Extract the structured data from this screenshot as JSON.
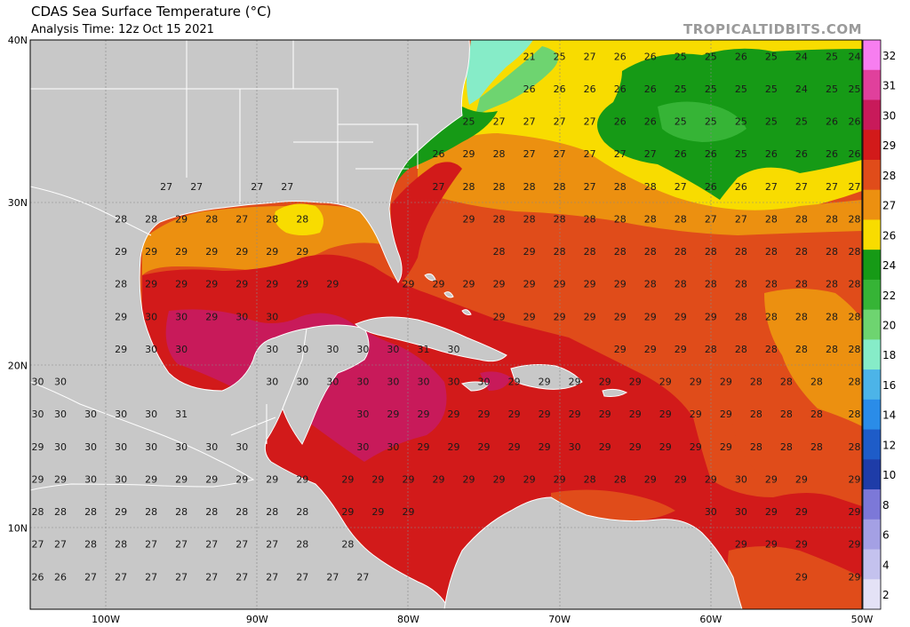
{
  "header": {
    "title": "CDAS Sea Surface Temperature (°C)",
    "subtitle": "Analysis Time: 12z Oct 15 2021",
    "credit": "TROPICALTIDBITS.COM"
  },
  "map": {
    "lon_range": [
      -105,
      -50
    ],
    "lat_range": [
      5,
      40
    ],
    "lat_labels": [
      "40N",
      "30N",
      "20N",
      "10N"
    ],
    "lon_labels": [
      "100W",
      "90W",
      "80W",
      "70W",
      "60W",
      "50W"
    ],
    "land_color": "#c8c8c8",
    "border_color": "#ffffff"
  },
  "colorbar": {
    "labels": [
      "32",
      "31",
      "30",
      "29",
      "28",
      "27",
      "26",
      "24",
      "22",
      "20",
      "18",
      "16",
      "14",
      "12",
      "10",
      "8",
      "6",
      "4",
      "2"
    ],
    "bands": [
      {
        "label": "32",
        "color": "#f77ef0"
      },
      {
        "label": "31",
        "color": "#e0409c"
      },
      {
        "label": "30",
        "color": "#c81a5a"
      },
      {
        "label": "29",
        "color": "#d21a1a"
      },
      {
        "label": "28",
        "color": "#e04c1a"
      },
      {
        "label": "27",
        "color": "#ec9010"
      },
      {
        "label": "26",
        "color": "#f8dc00"
      },
      {
        "label": "24",
        "color": "#169a16"
      },
      {
        "label": "22",
        "color": "#36b436"
      },
      {
        "label": "20",
        "color": "#6ed470"
      },
      {
        "label": "18",
        "color": "#86ecc8"
      },
      {
        "label": "16",
        "color": "#4cb4e8"
      },
      {
        "label": "14",
        "color": "#2a8ce8"
      },
      {
        "label": "12",
        "color": "#1e5cc8"
      },
      {
        "label": "10",
        "color": "#1e3ca8"
      },
      {
        "label": "8",
        "color": "#7c78d8"
      },
      {
        "label": "6",
        "color": "#a4a0e4"
      },
      {
        "label": "4",
        "color": "#c4c2ee"
      },
      {
        "label": "2",
        "color": "#e4e2f6"
      }
    ]
  },
  "sst_rows": [
    {
      "lat": 39.0,
      "cells": [
        [
          -72,
          "21"
        ],
        [
          -70,
          "25"
        ],
        [
          -68,
          "27"
        ],
        [
          -66,
          "26"
        ],
        [
          -64,
          "26"
        ],
        [
          -62,
          "25"
        ],
        [
          -60,
          "25"
        ],
        [
          -58,
          "26"
        ],
        [
          -56,
          "25"
        ],
        [
          -54,
          "24"
        ],
        [
          -52,
          "25"
        ],
        [
          -50.5,
          "24"
        ]
      ]
    },
    {
      "lat": 37.0,
      "cells": [
        [
          -72,
          "26"
        ],
        [
          -70,
          "26"
        ],
        [
          -68,
          "26"
        ],
        [
          -66,
          "26"
        ],
        [
          -64,
          "26"
        ],
        [
          -62,
          "25"
        ],
        [
          -60,
          "25"
        ],
        [
          -58,
          "25"
        ],
        [
          -56,
          "25"
        ],
        [
          -54,
          "24"
        ],
        [
          -52,
          "25"
        ],
        [
          -50.5,
          "25"
        ]
      ]
    },
    {
      "lat": 35.0,
      "cells": [
        [
          -76,
          "25"
        ],
        [
          -74,
          "27"
        ],
        [
          -72,
          "27"
        ],
        [
          -70,
          "27"
        ],
        [
          -68,
          "27"
        ],
        [
          -66,
          "26"
        ],
        [
          -64,
          "26"
        ],
        [
          -62,
          "25"
        ],
        [
          -60,
          "25"
        ],
        [
          -58,
          "25"
        ],
        [
          -56,
          "25"
        ],
        [
          -54,
          "25"
        ],
        [
          -52,
          "26"
        ],
        [
          -50.5,
          "26"
        ]
      ]
    },
    {
      "lat": 33.0,
      "cells": [
        [
          -78,
          "26"
        ],
        [
          -76,
          "29"
        ],
        [
          -74,
          "28"
        ],
        [
          -72,
          "27"
        ],
        [
          -70,
          "27"
        ],
        [
          -68,
          "27"
        ],
        [
          -66,
          "27"
        ],
        [
          -64,
          "27"
        ],
        [
          -62,
          "26"
        ],
        [
          -60,
          "26"
        ],
        [
          -58,
          "25"
        ],
        [
          -56,
          "26"
        ],
        [
          -54,
          "26"
        ],
        [
          -52,
          "26"
        ],
        [
          -50.5,
          "26"
        ]
      ]
    },
    {
      "lat": 31.0,
      "cells": [
        [
          -96,
          "27"
        ],
        [
          -94,
          "27"
        ],
        [
          -90,
          "27"
        ],
        [
          -88,
          "27"
        ],
        [
          -78,
          "27"
        ],
        [
          -76,
          "28"
        ],
        [
          -74,
          "28"
        ],
        [
          -72,
          "28"
        ],
        [
          -70,
          "28"
        ],
        [
          -68,
          "27"
        ],
        [
          -66,
          "28"
        ],
        [
          -64,
          "28"
        ],
        [
          -62,
          "27"
        ],
        [
          -60,
          "26"
        ],
        [
          -58,
          "26"
        ],
        [
          -56,
          "27"
        ],
        [
          -54,
          "27"
        ],
        [
          -52,
          "27"
        ],
        [
          -50.5,
          "27"
        ]
      ]
    },
    {
      "lat": 29.0,
      "cells": [
        [
          -99,
          "28"
        ],
        [
          -97,
          "28"
        ],
        [
          -95,
          "29"
        ],
        [
          -93,
          "28"
        ],
        [
          -91,
          "27"
        ],
        [
          -89,
          "28"
        ],
        [
          -87,
          "28"
        ],
        [
          -76,
          "29"
        ],
        [
          -74,
          "28"
        ],
        [
          -72,
          "28"
        ],
        [
          -70,
          "28"
        ],
        [
          -68,
          "28"
        ],
        [
          -66,
          "28"
        ],
        [
          -64,
          "28"
        ],
        [
          -62,
          "28"
        ],
        [
          -60,
          "27"
        ],
        [
          -58,
          "27"
        ],
        [
          -56,
          "28"
        ],
        [
          -54,
          "28"
        ],
        [
          -52,
          "28"
        ],
        [
          -50.5,
          "28"
        ]
      ]
    },
    {
      "lat": 27.0,
      "cells": [
        [
          -99,
          "29"
        ],
        [
          -97,
          "29"
        ],
        [
          -95,
          "29"
        ],
        [
          -93,
          "29"
        ],
        [
          -91,
          "29"
        ],
        [
          -89,
          "29"
        ],
        [
          -87,
          "29"
        ],
        [
          -74,
          "28"
        ],
        [
          -72,
          "29"
        ],
        [
          -70,
          "28"
        ],
        [
          -68,
          "28"
        ],
        [
          -66,
          "28"
        ],
        [
          -64,
          "28"
        ],
        [
          -62,
          "28"
        ],
        [
          -60,
          "28"
        ],
        [
          -58,
          "28"
        ],
        [
          -56,
          "28"
        ],
        [
          -54,
          "28"
        ],
        [
          -52,
          "28"
        ],
        [
          -50.5,
          "28"
        ]
      ]
    },
    {
      "lat": 25.0,
      "cells": [
        [
          -99,
          "28"
        ],
        [
          -97,
          "29"
        ],
        [
          -95,
          "29"
        ],
        [
          -93,
          "29"
        ],
        [
          -91,
          "29"
        ],
        [
          -89,
          "29"
        ],
        [
          -87,
          "29"
        ],
        [
          -85,
          "29"
        ],
        [
          -80,
          "29"
        ],
        [
          -78,
          "29"
        ],
        [
          -76,
          "29"
        ],
        [
          -74,
          "29"
        ],
        [
          -72,
          "29"
        ],
        [
          -70,
          "29"
        ],
        [
          -68,
          "29"
        ],
        [
          -66,
          "29"
        ],
        [
          -64,
          "28"
        ],
        [
          -62,
          "28"
        ],
        [
          -60,
          "28"
        ],
        [
          -58,
          "28"
        ],
        [
          -56,
          "28"
        ],
        [
          -54,
          "28"
        ],
        [
          -52,
          "28"
        ],
        [
          -50.5,
          "28"
        ]
      ]
    },
    {
      "lat": 23.0,
      "cells": [
        [
          -99,
          "29"
        ],
        [
          -97,
          "30"
        ],
        [
          -95,
          "30"
        ],
        [
          -93,
          "29"
        ],
        [
          -91,
          "30"
        ],
        [
          -89,
          "30"
        ],
        [
          -74,
          "29"
        ],
        [
          -72,
          "29"
        ],
        [
          -70,
          "29"
        ],
        [
          -68,
          "29"
        ],
        [
          -66,
          "29"
        ],
        [
          -64,
          "29"
        ],
        [
          -62,
          "29"
        ],
        [
          -60,
          "29"
        ],
        [
          -58,
          "28"
        ],
        [
          -56,
          "28"
        ],
        [
          -54,
          "28"
        ],
        [
          -52,
          "28"
        ],
        [
          -50.5,
          "28"
        ]
      ]
    },
    {
      "lat": 21.0,
      "cells": [
        [
          -99,
          "29"
        ],
        [
          -97,
          "30"
        ],
        [
          -95,
          "30"
        ],
        [
          -89,
          "30"
        ],
        [
          -87,
          "30"
        ],
        [
          -85,
          "30"
        ],
        [
          -83,
          "30"
        ],
        [
          -81,
          "30"
        ],
        [
          -79,
          "31"
        ],
        [
          -77,
          "30"
        ],
        [
          -66,
          "29"
        ],
        [
          -64,
          "29"
        ],
        [
          -62,
          "29"
        ],
        [
          -60,
          "28"
        ],
        [
          -58,
          "28"
        ],
        [
          -56,
          "28"
        ],
        [
          -54,
          "28"
        ],
        [
          -52,
          "28"
        ],
        [
          -50.5,
          "28"
        ]
      ]
    },
    {
      "lat": 19.0,
      "cells": [
        [
          -104.5,
          "30"
        ],
        [
          -103,
          "30"
        ],
        [
          -89,
          "30"
        ],
        [
          -87,
          "30"
        ],
        [
          -85,
          "30"
        ],
        [
          -83,
          "30"
        ],
        [
          -81,
          "30"
        ],
        [
          -79,
          "30"
        ],
        [
          -77,
          "30"
        ],
        [
          -75,
          "30"
        ],
        [
          -73,
          "29"
        ],
        [
          -71,
          "29"
        ],
        [
          -69,
          "29"
        ],
        [
          -67,
          "29"
        ],
        [
          -65,
          "29"
        ],
        [
          -63,
          "29"
        ],
        [
          -61,
          "29"
        ],
        [
          -59,
          "29"
        ],
        [
          -57,
          "28"
        ],
        [
          -55,
          "28"
        ],
        [
          -53,
          "28"
        ],
        [
          -50.5,
          "28"
        ]
      ]
    },
    {
      "lat": 17.0,
      "cells": [
        [
          -104.5,
          "30"
        ],
        [
          -103,
          "30"
        ],
        [
          -101,
          "30"
        ],
        [
          -99,
          "30"
        ],
        [
          -97,
          "30"
        ],
        [
          -95,
          "31"
        ],
        [
          -83,
          "30"
        ],
        [
          -81,
          "29"
        ],
        [
          -79,
          "29"
        ],
        [
          -77,
          "29"
        ],
        [
          -75,
          "29"
        ],
        [
          -73,
          "29"
        ],
        [
          -71,
          "29"
        ],
        [
          -69,
          "29"
        ],
        [
          -67,
          "29"
        ],
        [
          -65,
          "29"
        ],
        [
          -63,
          "29"
        ],
        [
          -61,
          "29"
        ],
        [
          -59,
          "29"
        ],
        [
          -57,
          "28"
        ],
        [
          -55,
          "28"
        ],
        [
          -53,
          "28"
        ],
        [
          -50.5,
          "28"
        ]
      ]
    },
    {
      "lat": 15.0,
      "cells": [
        [
          -104.5,
          "29"
        ],
        [
          -103,
          "30"
        ],
        [
          -101,
          "30"
        ],
        [
          -99,
          "30"
        ],
        [
          -97,
          "30"
        ],
        [
          -95,
          "30"
        ],
        [
          -93,
          "30"
        ],
        [
          -91,
          "30"
        ],
        [
          -83,
          "30"
        ],
        [
          -81,
          "30"
        ],
        [
          -79,
          "29"
        ],
        [
          -77,
          "29"
        ],
        [
          -75,
          "29"
        ],
        [
          -73,
          "29"
        ],
        [
          -71,
          "29"
        ],
        [
          -69,
          "30"
        ],
        [
          -67,
          "29"
        ],
        [
          -65,
          "29"
        ],
        [
          -63,
          "29"
        ],
        [
          -61,
          "29"
        ],
        [
          -59,
          "29"
        ],
        [
          -57,
          "28"
        ],
        [
          -55,
          "28"
        ],
        [
          -53,
          "28"
        ],
        [
          -50.5,
          "28"
        ]
      ]
    },
    {
      "lat": 13.0,
      "cells": [
        [
          -104.5,
          "29"
        ],
        [
          -103,
          "29"
        ],
        [
          -101,
          "30"
        ],
        [
          -99,
          "30"
        ],
        [
          -97,
          "29"
        ],
        [
          -95,
          "29"
        ],
        [
          -93,
          "29"
        ],
        [
          -91,
          "29"
        ],
        [
          -89,
          "29"
        ],
        [
          -87,
          "29"
        ],
        [
          -84,
          "29"
        ],
        [
          -82,
          "29"
        ],
        [
          -80,
          "29"
        ],
        [
          -78,
          "29"
        ],
        [
          -76,
          "29"
        ],
        [
          -74,
          "29"
        ],
        [
          -72,
          "29"
        ],
        [
          -70,
          "29"
        ],
        [
          -68,
          "28"
        ],
        [
          -66,
          "28"
        ],
        [
          -64,
          "29"
        ],
        [
          -62,
          "29"
        ],
        [
          -60,
          "29"
        ],
        [
          -58,
          "30"
        ],
        [
          -56,
          "29"
        ],
        [
          -54,
          "29"
        ],
        [
          -50.5,
          "29"
        ]
      ]
    },
    {
      "lat": 11.0,
      "cells": [
        [
          -104.5,
          "28"
        ],
        [
          -103,
          "28"
        ],
        [
          -101,
          "28"
        ],
        [
          -99,
          "29"
        ],
        [
          -97,
          "28"
        ],
        [
          -95,
          "28"
        ],
        [
          -93,
          "28"
        ],
        [
          -91,
          "28"
        ],
        [
          -89,
          "28"
        ],
        [
          -87,
          "28"
        ],
        [
          -84,
          "29"
        ],
        [
          -82,
          "29"
        ],
        [
          -80,
          "29"
        ],
        [
          -60,
          "30"
        ],
        [
          -58,
          "30"
        ],
        [
          -56,
          "29"
        ],
        [
          -54,
          "29"
        ],
        [
          -50.5,
          "29"
        ]
      ]
    },
    {
      "lat": 9.0,
      "cells": [
        [
          -104.5,
          "27"
        ],
        [
          -103,
          "27"
        ],
        [
          -101,
          "28"
        ],
        [
          -99,
          "28"
        ],
        [
          -97,
          "27"
        ],
        [
          -95,
          "27"
        ],
        [
          -93,
          "27"
        ],
        [
          -91,
          "27"
        ],
        [
          -89,
          "27"
        ],
        [
          -87,
          "28"
        ],
        [
          -84,
          "28"
        ],
        [
          -58,
          "29"
        ],
        [
          -56,
          "29"
        ],
        [
          -54,
          "29"
        ],
        [
          -50.5,
          "29"
        ]
      ]
    },
    {
      "lat": 7.0,
      "cells": [
        [
          -104.5,
          "26"
        ],
        [
          -103,
          "26"
        ],
        [
          -101,
          "27"
        ],
        [
          -99,
          "27"
        ],
        [
          -97,
          "27"
        ],
        [
          -95,
          "27"
        ],
        [
          -93,
          "27"
        ],
        [
          -91,
          "27"
        ],
        [
          -89,
          "27"
        ],
        [
          -87,
          "27"
        ],
        [
          -85,
          "27"
        ],
        [
          -83,
          "27"
        ],
        [
          -54,
          "29"
        ],
        [
          -50.5,
          "29"
        ]
      ]
    }
  ]
}
